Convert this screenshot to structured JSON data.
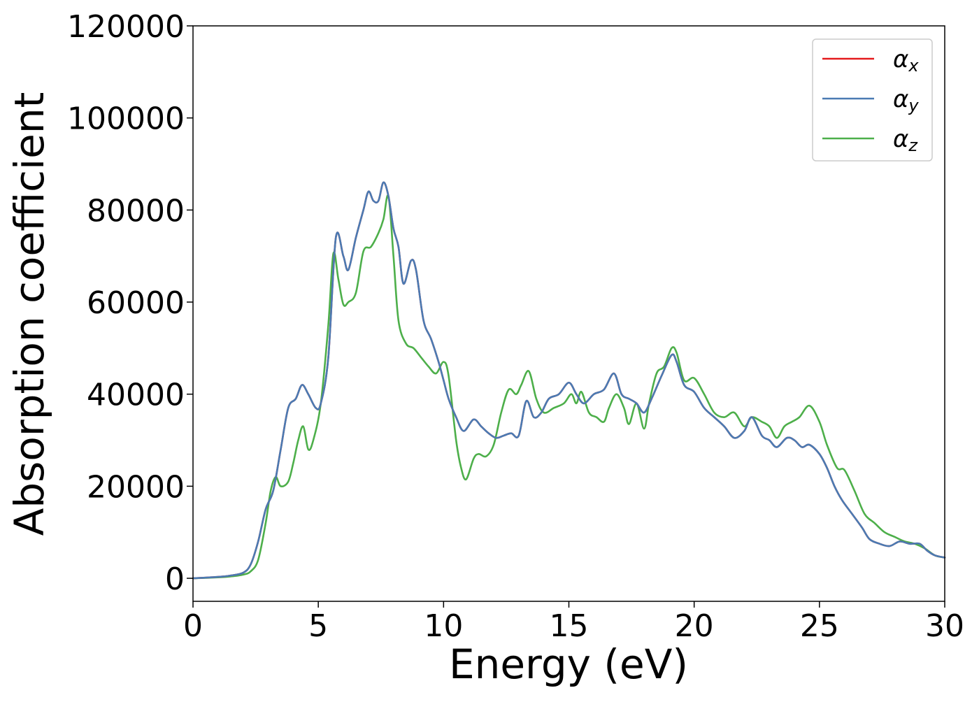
{
  "chart_data": {
    "type": "line",
    "xlabel": "Energy (eV)",
    "ylabel": "Absorption coefficient",
    "xlim": [
      0,
      30
    ],
    "ylim": [
      -5000,
      120000
    ],
    "xticks": [
      0,
      5,
      10,
      15,
      20,
      25,
      30
    ],
    "yticks": [
      0,
      20000,
      40000,
      60000,
      80000,
      100000,
      120000
    ],
    "grid": false,
    "legend_position": "top-right",
    "series": [
      {
        "name": "α",
        "subscript": "x",
        "color": "#e41a1c",
        "x": [
          0,
          1,
          1.5,
          2,
          2.3,
          2.6,
          2.9,
          3.2,
          3.5,
          3.8,
          4.1,
          4.35,
          4.6,
          4.9,
          5.1,
          5.4,
          5.7,
          6.0,
          6.2,
          6.5,
          6.8,
          7.0,
          7.2,
          7.4,
          7.6,
          7.8,
          8.0,
          8.2,
          8.4,
          8.7,
          8.9,
          9.2,
          9.5,
          9.8,
          10.0,
          10.2,
          10.5,
          10.8,
          11.2,
          11.5,
          11.8,
          12.1,
          12.4,
          12.7,
          13.0,
          13.3,
          13.6,
          13.9,
          14.2,
          14.6,
          15.0,
          15.3,
          15.6,
          16.0,
          16.4,
          16.8,
          17.1,
          17.4,
          17.7,
          18.0,
          18.3,
          18.7,
          19.1,
          19.3,
          19.6,
          20.0,
          20.4,
          20.8,
          21.2,
          21.6,
          22.0,
          22.3,
          22.7,
          23.0,
          23.3,
          23.7,
          24.0,
          24.3,
          24.6,
          25.0,
          25.3,
          25.6,
          25.9,
          26.3,
          26.7,
          27.0,
          27.4,
          27.8,
          28.2,
          28.6,
          29.0,
          29.3,
          29.6,
          30.0
        ],
        "y": [
          0,
          300,
          600,
          1200,
          3000,
          8000,
          15000,
          19000,
          28000,
          37000,
          39000,
          42000,
          40000,
          37000,
          38000,
          48000,
          74000,
          70000,
          67000,
          74000,
          80000,
          84000,
          82000,
          82000,
          86000,
          83000,
          76000,
          72000,
          64000,
          69000,
          67000,
          56000,
          52000,
          47000,
          43000,
          39000,
          35000,
          32000,
          34500,
          33000,
          31500,
          30500,
          31000,
          31500,
          31000,
          38500,
          35000,
          36000,
          39000,
          40000,
          42500,
          40000,
          38000,
          40000,
          41000,
          44500,
          40000,
          39000,
          38000,
          36000,
          39000,
          44000,
          48500,
          47000,
          42000,
          40500,
          37000,
          35000,
          33000,
          30500,
          32000,
          35000,
          31000,
          30000,
          28500,
          30500,
          30000,
          28500,
          29000,
          27000,
          24000,
          20000,
          17000,
          14000,
          11000,
          8500,
          7500,
          7000,
          8000,
          7500,
          7500,
          6000,
          5000,
          4500
        ]
      },
      {
        "name": "α",
        "subscript": "y",
        "color": "#4a7bb3",
        "x": [
          0,
          1,
          1.5,
          2,
          2.3,
          2.6,
          2.9,
          3.2,
          3.5,
          3.8,
          4.1,
          4.35,
          4.6,
          4.9,
          5.1,
          5.4,
          5.7,
          6.0,
          6.2,
          6.5,
          6.8,
          7.0,
          7.2,
          7.4,
          7.6,
          7.8,
          8.0,
          8.2,
          8.4,
          8.7,
          8.9,
          9.2,
          9.5,
          9.8,
          10.0,
          10.2,
          10.5,
          10.8,
          11.2,
          11.5,
          11.8,
          12.1,
          12.4,
          12.7,
          13.0,
          13.3,
          13.6,
          13.9,
          14.2,
          14.6,
          15.0,
          15.3,
          15.6,
          16.0,
          16.4,
          16.8,
          17.1,
          17.4,
          17.7,
          18.0,
          18.3,
          18.7,
          19.1,
          19.3,
          19.6,
          20.0,
          20.4,
          20.8,
          21.2,
          21.6,
          22.0,
          22.3,
          22.7,
          23.0,
          23.3,
          23.7,
          24.0,
          24.3,
          24.6,
          25.0,
          25.3,
          25.6,
          25.9,
          26.3,
          26.7,
          27.0,
          27.4,
          27.8,
          28.2,
          28.6,
          29.0,
          29.3,
          29.6,
          30.0
        ],
        "y": [
          0,
          300,
          600,
          1200,
          3000,
          8000,
          15000,
          19000,
          28000,
          37000,
          39000,
          42000,
          40000,
          37000,
          38000,
          48000,
          74000,
          70000,
          67000,
          74000,
          80000,
          84000,
          82000,
          82000,
          86000,
          83000,
          76000,
          72000,
          64000,
          69000,
          67000,
          56000,
          52000,
          47000,
          43000,
          39000,
          35000,
          32000,
          34500,
          33000,
          31500,
          30500,
          31000,
          31500,
          31000,
          38500,
          35000,
          36000,
          39000,
          40000,
          42500,
          40000,
          38000,
          40000,
          41000,
          44500,
          40000,
          39000,
          38000,
          36000,
          39000,
          44000,
          48500,
          47000,
          42000,
          40500,
          37000,
          35000,
          33000,
          30500,
          32000,
          35000,
          31000,
          30000,
          28500,
          30500,
          30000,
          28500,
          29000,
          27000,
          24000,
          20000,
          17000,
          14000,
          11000,
          8500,
          7500,
          7000,
          8000,
          7500,
          7500,
          6000,
          5000,
          4500
        ]
      },
      {
        "name": "α",
        "subscript": "z",
        "color": "#4daf4a",
        "x": [
          0,
          1,
          1.5,
          2,
          2.3,
          2.6,
          2.9,
          3.1,
          3.3,
          3.5,
          3.8,
          4.0,
          4.2,
          4.4,
          4.6,
          4.8,
          5.1,
          5.4,
          5.6,
          5.8,
          6.0,
          6.2,
          6.5,
          6.8,
          7.1,
          7.4,
          7.6,
          7.8,
          8.0,
          8.2,
          8.5,
          8.8,
          9.1,
          9.4,
          9.7,
          10.0,
          10.2,
          10.5,
          10.7,
          10.9,
          11.2,
          11.4,
          11.7,
          12.0,
          12.3,
          12.6,
          12.9,
          13.1,
          13.4,
          13.7,
          14.0,
          14.4,
          14.8,
          15.1,
          15.3,
          15.5,
          15.8,
          16.1,
          16.4,
          16.6,
          16.9,
          17.2,
          17.4,
          17.7,
          18.0,
          18.2,
          18.5,
          18.8,
          19.1,
          19.3,
          19.6,
          20.0,
          20.4,
          20.8,
          21.2,
          21.6,
          22.0,
          22.3,
          22.7,
          23.0,
          23.3,
          23.6,
          23.9,
          24.2,
          24.6,
          25.0,
          25.3,
          25.7,
          26.0,
          26.4,
          26.8,
          27.2,
          27.6,
          28.0,
          28.4,
          28.8,
          29.2,
          29.6,
          30.0
        ],
        "y": [
          0,
          200,
          400,
          800,
          1500,
          4000,
          12000,
          19000,
          22000,
          20000,
          21000,
          25000,
          30000,
          33000,
          28000,
          30000,
          38000,
          55000,
          70500,
          65000,
          59500,
          60000,
          62000,
          71000,
          72000,
          75000,
          78000,
          83000,
          70000,
          56000,
          51000,
          50000,
          48000,
          46000,
          44500,
          47000,
          44000,
          30000,
          24000,
          21500,
          26000,
          27000,
          26500,
          29000,
          36000,
          41000,
          40000,
          42000,
          45000,
          39000,
          36000,
          37000,
          38000,
          40000,
          38000,
          40500,
          36000,
          35000,
          34000,
          37000,
          40000,
          37000,
          33500,
          38000,
          32500,
          38000,
          44500,
          46000,
          50000,
          49000,
          43000,
          43500,
          40000,
          36000,
          35000,
          36000,
          33000,
          35000,
          34000,
          33000,
          30500,
          33000,
          34000,
          35000,
          37500,
          34000,
          29000,
          24000,
          23500,
          19000,
          14000,
          12000,
          10000,
          9000,
          8000,
          7500,
          6500,
          5000,
          4500
        ]
      }
    ]
  }
}
